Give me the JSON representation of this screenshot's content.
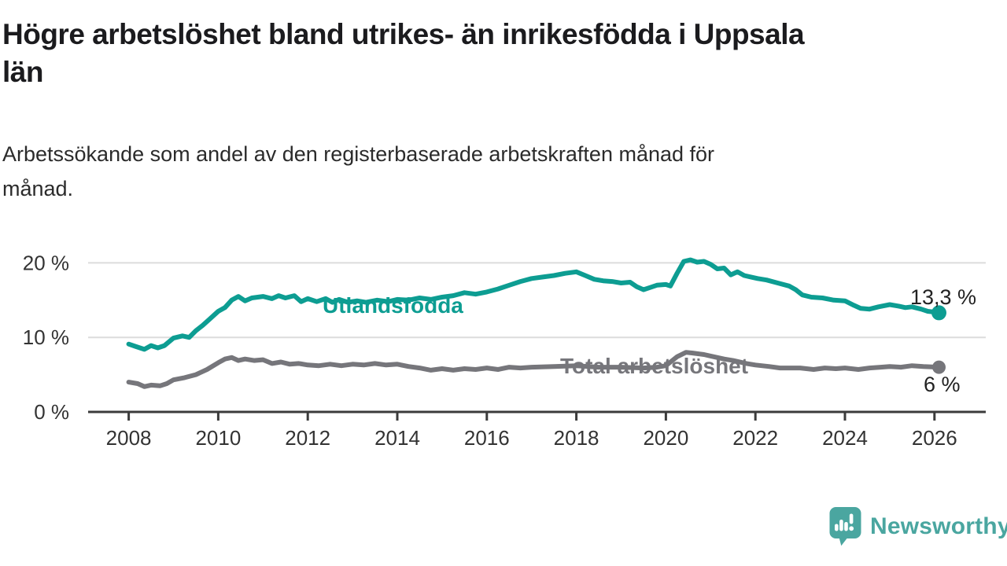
{
  "page": {
    "title_lines": [
      "Högre arbetslöshet bland utrikes- än inrikesfödda i Uppsala",
      "län"
    ],
    "subtitle_lines": [
      "Arbetssökande som andel av den registerbaserade arbetskraften månad för",
      "månad."
    ]
  },
  "brand": {
    "name": "Newsworthy",
    "color": "#4aa6a0"
  },
  "chart_data": {
    "type": "line",
    "title": "Högre arbetslöshet bland utrikes- än inrikesfödda i Uppsala län",
    "subtitle": "Arbetssökande som andel av den registerbaserade arbetskraften månad för månad.",
    "unit": "%",
    "grid": "horizontal",
    "legend_position": "inline-labels",
    "xlim": [
      2007.1,
      2027.15
    ],
    "ylim": [
      0,
      21.5
    ],
    "x_axis": {
      "ticks": [
        {
          "value": 2008,
          "label": "2008"
        },
        {
          "value": 2010,
          "label": "2010"
        },
        {
          "value": 2012,
          "label": "2012"
        },
        {
          "value": 2014,
          "label": "2014"
        },
        {
          "value": 2016,
          "label": "2016"
        },
        {
          "value": 2018,
          "label": "2018"
        },
        {
          "value": 2020,
          "label": "2020"
        },
        {
          "value": 2022,
          "label": "2022"
        },
        {
          "value": 2024,
          "label": "2024"
        },
        {
          "value": 2026,
          "label": "2026"
        }
      ]
    },
    "y_axis": {
      "ticks": [
        {
          "value": 0,
          "label": "0 %"
        },
        {
          "value": 10,
          "label": "10 %"
        },
        {
          "value": 20,
          "label": "20 %"
        }
      ]
    },
    "series": [
      {
        "name": "Utlandsfödda",
        "color": "#0d9d92",
        "end_label": "13,3 %",
        "end_value": 13.3,
        "points": [
          [
            2008.0,
            9.1
          ],
          [
            2008.15,
            8.8
          ],
          [
            2008.35,
            8.4
          ],
          [
            2008.5,
            8.9
          ],
          [
            2008.65,
            8.6
          ],
          [
            2008.8,
            8.9
          ],
          [
            2009.0,
            9.9
          ],
          [
            2009.2,
            10.2
          ],
          [
            2009.35,
            10.0
          ],
          [
            2009.5,
            10.9
          ],
          [
            2009.65,
            11.6
          ],
          [
            2009.8,
            12.4
          ],
          [
            2010.0,
            13.5
          ],
          [
            2010.15,
            14.0
          ],
          [
            2010.3,
            15.0
          ],
          [
            2010.45,
            15.5
          ],
          [
            2010.6,
            14.9
          ],
          [
            2010.75,
            15.3
          ],
          [
            2011.0,
            15.5
          ],
          [
            2011.2,
            15.2
          ],
          [
            2011.35,
            15.6
          ],
          [
            2011.5,
            15.3
          ],
          [
            2011.7,
            15.6
          ],
          [
            2011.85,
            14.8
          ],
          [
            2012.0,
            15.2
          ],
          [
            2012.2,
            14.8
          ],
          [
            2012.4,
            15.2
          ],
          [
            2012.55,
            14.7
          ],
          [
            2012.7,
            15.1
          ],
          [
            2012.9,
            14.7
          ],
          [
            2013.1,
            14.9
          ],
          [
            2013.3,
            14.7
          ],
          [
            2013.55,
            15.0
          ],
          [
            2013.8,
            14.8
          ],
          [
            2014.0,
            15.1
          ],
          [
            2014.25,
            15.0
          ],
          [
            2014.5,
            15.3
          ],
          [
            2014.75,
            15.1
          ],
          [
            2015.0,
            15.4
          ],
          [
            2015.25,
            15.6
          ],
          [
            2015.5,
            16.0
          ],
          [
            2015.75,
            15.8
          ],
          [
            2016.0,
            16.1
          ],
          [
            2016.25,
            16.5
          ],
          [
            2016.5,
            17.0
          ],
          [
            2016.75,
            17.5
          ],
          [
            2017.0,
            17.9
          ],
          [
            2017.25,
            18.1
          ],
          [
            2017.5,
            18.3
          ],
          [
            2017.75,
            18.6
          ],
          [
            2018.0,
            18.8
          ],
          [
            2018.2,
            18.3
          ],
          [
            2018.4,
            17.8
          ],
          [
            2018.6,
            17.6
          ],
          [
            2018.8,
            17.5
          ],
          [
            2019.0,
            17.3
          ],
          [
            2019.2,
            17.4
          ],
          [
            2019.35,
            16.8
          ],
          [
            2019.5,
            16.4
          ],
          [
            2019.65,
            16.7
          ],
          [
            2019.8,
            17.0
          ],
          [
            2020.0,
            17.1
          ],
          [
            2020.1,
            16.9
          ],
          [
            2020.25,
            18.6
          ],
          [
            2020.4,
            20.2
          ],
          [
            2020.55,
            20.4
          ],
          [
            2020.7,
            20.1
          ],
          [
            2020.85,
            20.2
          ],
          [
            2021.0,
            19.8
          ],
          [
            2021.15,
            19.2
          ],
          [
            2021.3,
            19.3
          ],
          [
            2021.45,
            18.4
          ],
          [
            2021.6,
            18.8
          ],
          [
            2021.75,
            18.3
          ],
          [
            2021.9,
            18.1
          ],
          [
            2022.05,
            17.9
          ],
          [
            2022.25,
            17.7
          ],
          [
            2022.5,
            17.3
          ],
          [
            2022.75,
            16.9
          ],
          [
            2022.9,
            16.4
          ],
          [
            2023.05,
            15.7
          ],
          [
            2023.25,
            15.4
          ],
          [
            2023.5,
            15.3
          ],
          [
            2023.75,
            15.0
          ],
          [
            2024.0,
            14.9
          ],
          [
            2024.2,
            14.3
          ],
          [
            2024.35,
            13.9
          ],
          [
            2024.55,
            13.8
          ],
          [
            2024.75,
            14.1
          ],
          [
            2025.0,
            14.4
          ],
          [
            2025.2,
            14.2
          ],
          [
            2025.35,
            14.0
          ],
          [
            2025.5,
            14.1
          ],
          [
            2025.7,
            13.8
          ],
          [
            2025.85,
            13.5
          ],
          [
            2026.0,
            13.4
          ],
          [
            2026.1,
            13.3
          ]
        ]
      },
      {
        "name": "Total arbetslöshet",
        "color": "#76767b",
        "end_label": "6 %",
        "end_value": 6.0,
        "points": [
          [
            2008.0,
            4.0
          ],
          [
            2008.2,
            3.8
          ],
          [
            2008.35,
            3.4
          ],
          [
            2008.5,
            3.6
          ],
          [
            2008.7,
            3.5
          ],
          [
            2008.85,
            3.8
          ],
          [
            2009.0,
            4.3
          ],
          [
            2009.25,
            4.6
          ],
          [
            2009.5,
            5.0
          ],
          [
            2009.75,
            5.7
          ],
          [
            2010.0,
            6.6
          ],
          [
            2010.15,
            7.1
          ],
          [
            2010.3,
            7.3
          ],
          [
            2010.45,
            6.9
          ],
          [
            2010.6,
            7.1
          ],
          [
            2010.8,
            6.9
          ],
          [
            2011.0,
            7.0
          ],
          [
            2011.2,
            6.5
          ],
          [
            2011.4,
            6.7
          ],
          [
            2011.6,
            6.4
          ],
          [
            2011.8,
            6.5
          ],
          [
            2012.0,
            6.3
          ],
          [
            2012.25,
            6.2
          ],
          [
            2012.5,
            6.4
          ],
          [
            2012.75,
            6.2
          ],
          [
            2013.0,
            6.4
          ],
          [
            2013.25,
            6.3
          ],
          [
            2013.5,
            6.5
          ],
          [
            2013.75,
            6.3
          ],
          [
            2014.0,
            6.4
          ],
          [
            2014.25,
            6.1
          ],
          [
            2014.5,
            5.9
          ],
          [
            2014.75,
            5.6
          ],
          [
            2015.0,
            5.8
          ],
          [
            2015.25,
            5.6
          ],
          [
            2015.5,
            5.8
          ],
          [
            2015.75,
            5.7
          ],
          [
            2016.0,
            5.9
          ],
          [
            2016.25,
            5.7
          ],
          [
            2016.5,
            6.0
          ],
          [
            2016.75,
            5.9
          ],
          [
            2017.0,
            6.0
          ],
          [
            2017.5,
            6.1
          ],
          [
            2018.0,
            6.2
          ],
          [
            2018.5,
            6.0
          ],
          [
            2019.0,
            6.0
          ],
          [
            2019.5,
            5.9
          ],
          [
            2019.8,
            6.0
          ],
          [
            2020.0,
            6.2
          ],
          [
            2020.25,
            7.4
          ],
          [
            2020.45,
            8.0
          ],
          [
            2020.6,
            7.9
          ],
          [
            2020.85,
            7.7
          ],
          [
            2021.0,
            7.5
          ],
          [
            2021.3,
            7.1
          ],
          [
            2021.5,
            6.9
          ],
          [
            2021.8,
            6.5
          ],
          [
            2022.0,
            6.3
          ],
          [
            2022.3,
            6.1
          ],
          [
            2022.55,
            5.9
          ],
          [
            2022.8,
            5.9
          ],
          [
            2023.0,
            5.9
          ],
          [
            2023.3,
            5.7
          ],
          [
            2023.55,
            5.9
          ],
          [
            2023.8,
            5.8
          ],
          [
            2024.0,
            5.9
          ],
          [
            2024.3,
            5.7
          ],
          [
            2024.55,
            5.9
          ],
          [
            2024.8,
            6.0
          ],
          [
            2025.0,
            6.1
          ],
          [
            2025.25,
            6.0
          ],
          [
            2025.5,
            6.2
          ],
          [
            2025.75,
            6.1
          ],
          [
            2026.1,
            6.0
          ]
        ]
      }
    ]
  }
}
